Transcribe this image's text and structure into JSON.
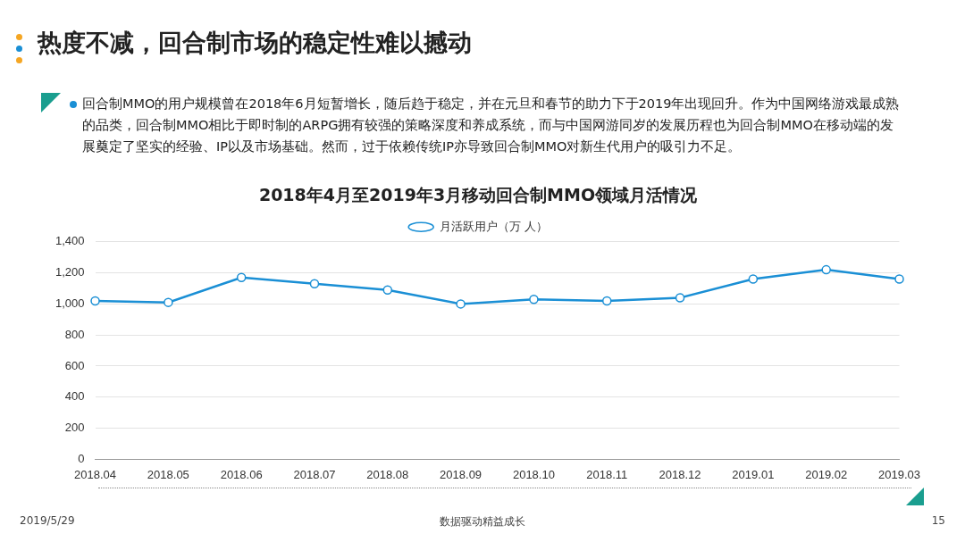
{
  "chart_data": {
    "type": "line",
    "title": "2018年4月至2019年3月移动回合制MMO领域月活情况",
    "categories": [
      "2018.04",
      "2018.05",
      "2018.06",
      "2018.07",
      "2018.08",
      "2018.09",
      "2018.10",
      "2018.11",
      "2018.12",
      "2019.01",
      "2019.02",
      "2019.03"
    ],
    "series": [
      {
        "name": "月活跃用户（万 人）",
        "color": "#1a8fd5",
        "values": [
          1020,
          1010,
          1170,
          1130,
          1090,
          1000,
          1030,
          1020,
          1040,
          1160,
          1220,
          1160
        ]
      }
    ],
    "ylim": [
      0,
      1400
    ],
    "yticks": [
      0,
      200,
      400,
      600,
      800,
      {
        "value": 1000,
        "label": "1,000"
      },
      {
        "value": 1200,
        "label": "1,200"
      },
      {
        "value": 1400,
        "label": "1,400"
      }
    ],
    "grid": "y",
    "legend": "top",
    "marker": "circle",
    "line_style": "solid",
    "annotations": [
      "热度不减，回合制市场的稳定性难以撼动",
      "回合制MMO的用户规模曾在2018年6月短暂增长，随后趋于稳定，并在元旦和春节的助力下于2019年出现回升。作为中国网络游戏最成熟的品类，回合制MMO相比于即时制的ARPG拥有较强的策略深度和养成系统，而与中国网游同岁的发展历程也为回合制MMO在移动端的发展奠定了坚实的经验、IP以及市场基础。然而，过于依赖传统IP亦导致回合制MMO对新生代用户的吸引力不足。",
      "2019/5/29",
      "数据驱动精益成长",
      "15"
    ]
  }
}
